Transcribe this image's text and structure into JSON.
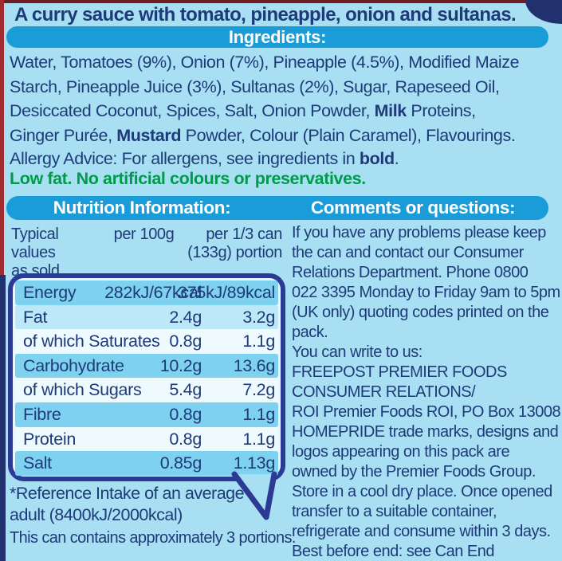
{
  "product_description": "A curry sauce with tomato, pineapple, onion and sultanas.",
  "ingredients": {
    "header": "Ingredients:",
    "lines": [
      [
        {
          "t": "Water, Tomatoes (9%), Onion (7%), Pineapple (4.5%), Modified Maize"
        }
      ],
      [
        {
          "t": "Starch, Pineapple Juice (3%), Sultanas (2%), Sugar, Rapeseed Oil,"
        }
      ],
      [
        {
          "t": "Desiccated Coconut, Spices, Salt, Onion Powder, "
        },
        {
          "t": "Milk",
          "b": true
        },
        {
          "t": " Proteins,"
        }
      ],
      [
        {
          "t": "Ginger Purée, "
        },
        {
          "t": "Mustard",
          "b": true
        },
        {
          "t": " Powder, Colour (Plain Caramel), Flavourings."
        }
      ]
    ],
    "allergy_line": [
      {
        "t": "Allergy Advice: For allergens, see ingredients in "
      },
      {
        "t": "bold",
        "b": true
      },
      {
        "t": "."
      }
    ],
    "claims_line": "Low fat. No artificial colours or preservatives."
  },
  "nutrition": {
    "header": "Nutrition Information:",
    "col_typical": "Typical values\nas sold",
    "col_per100": "per 100g",
    "col_per13": "per 1/3 can\n(133g) portion",
    "rows": [
      {
        "label": "Energy",
        "per100": "282kJ/67kcal",
        "per13": "375kJ/89kcal"
      },
      {
        "label": "Fat",
        "per100": "2.4g",
        "per13": "3.2g"
      },
      {
        "label": "of which Saturates",
        "per100": "0.8g",
        "per13": "1.1g"
      },
      {
        "label": "Carbohydrate",
        "per100": "10.2g",
        "per13": "13.6g"
      },
      {
        "label": "of which Sugars",
        "per100": "5.4g",
        "per13": "7.2g"
      },
      {
        "label": "Fibre",
        "per100": "0.8g",
        "per13": "1.1g"
      },
      {
        "label": "Protein",
        "per100": "0.8g",
        "per13": "1.1g"
      },
      {
        "label": "Salt",
        "per100": "0.85g",
        "per13": "1.13g"
      }
    ],
    "footnote": "*Reference Intake of an average\nadult (8400kJ/2000kcal)",
    "portions_note": "This can contains approximately 3 portions."
  },
  "comments": {
    "header": "Comments or questions:",
    "lines": [
      "If you have any problems please keep",
      "the can and contact our Consumer",
      "Relations Department. Phone 0800",
      "022 3395 Monday to Friday 9am to 5pm",
      "(UK only) quoting codes printed on the",
      "pack.",
      "You can write to us:",
      "FREEPOST PREMIER FOODS",
      "CONSUMER RELATIONS/",
      "ROI Premier Foods ROI, PO Box 13008",
      "HOMEPRIDE trade marks, designs and",
      "logos appearing on this pack are",
      "owned by the Premier Foods Group.",
      "Store in a cool dry place. Once opened",
      "transfer to a suitable container,",
      "refrigerate and consume within 3 days.",
      "Best before end: see Can End"
    ]
  },
  "colors": {
    "background": "#a8dff2",
    "header_bar_blue": "#1a9cd8",
    "navy_text": "#1e3a78",
    "green_text": "#009b4a",
    "bubble_border_navy": "#2b3a94",
    "row_medium_blue": "#7ed2ef",
    "row_light_blue": "#bce8f7",
    "row_white": "#eefafe",
    "can_edge_red": "#a12c30",
    "can_edge_navy": "#21316f"
  }
}
